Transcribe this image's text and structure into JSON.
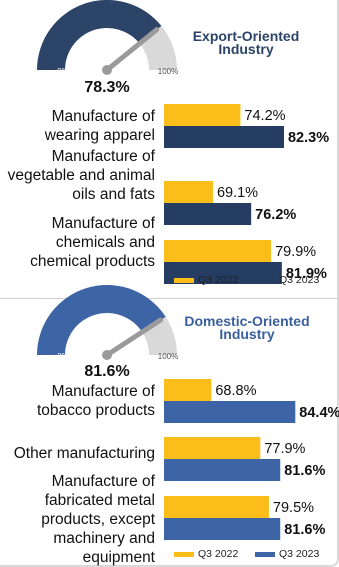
{
  "chart_data": [
    {
      "type": "bar",
      "orientation": "horizontal",
      "gauge": {
        "value": 78.3,
        "label": "78.3%",
        "min_label": "0%",
        "max_label": "100%",
        "fill_color": "#2b4468",
        "track_color": "#d9d9d9"
      },
      "title": [
        "Export-Oriented",
        "Industry"
      ],
      "title_color": "#2b4468",
      "categories": [
        [
          "Manufacture of",
          "wearing apparel"
        ],
        [
          "Manufacture of",
          "vegetable and animal",
          "oils and fats"
        ],
        [
          "Manufacture of",
          "chemicals and",
          "chemical products"
        ]
      ],
      "series": [
        {
          "name": "Q3 2022",
          "values": [
            74.2,
            69.1,
            79.9
          ],
          "labels": [
            "74.2%",
            "69.1%",
            "79.9%"
          ],
          "color": "#fbbd19"
        },
        {
          "name": "Q3 2023",
          "values": [
            82.3,
            76.2,
            81.9
          ],
          "labels": [
            "82.3%",
            "76.2%",
            "81.9%"
          ],
          "color": "#253d63"
        }
      ]
    },
    {
      "type": "bar",
      "orientation": "horizontal",
      "gauge": {
        "value": 81.6,
        "label": "81.6%",
        "min_label": "0%",
        "max_label": "100%",
        "fill_color": "#3d64a4",
        "track_color": "#d9d9d9"
      },
      "title": [
        "Domestic-Oriented",
        "Industry"
      ],
      "title_color": "#3a5f9e",
      "categories": [
        [
          "Manufacture of",
          "tobacco products"
        ],
        [
          "Other manufacturing"
        ],
        [
          "Manufacture of",
          "fabricated metal",
          "products, except",
          "machinery and",
          "equipment"
        ]
      ],
      "series": [
        {
          "name": "Q3 2022",
          "values": [
            68.8,
            77.9,
            79.5
          ],
          "labels": [
            "68.8%",
            "77.9%",
            "79.5%"
          ],
          "color": "#fbbd19"
        },
        {
          "name": "Q3 2023",
          "values": [
            84.4,
            81.6,
            81.6
          ],
          "labels": [
            "84.4%",
            "81.6%",
            "81.6%"
          ],
          "color": "#3d64a4"
        }
      ]
    }
  ]
}
